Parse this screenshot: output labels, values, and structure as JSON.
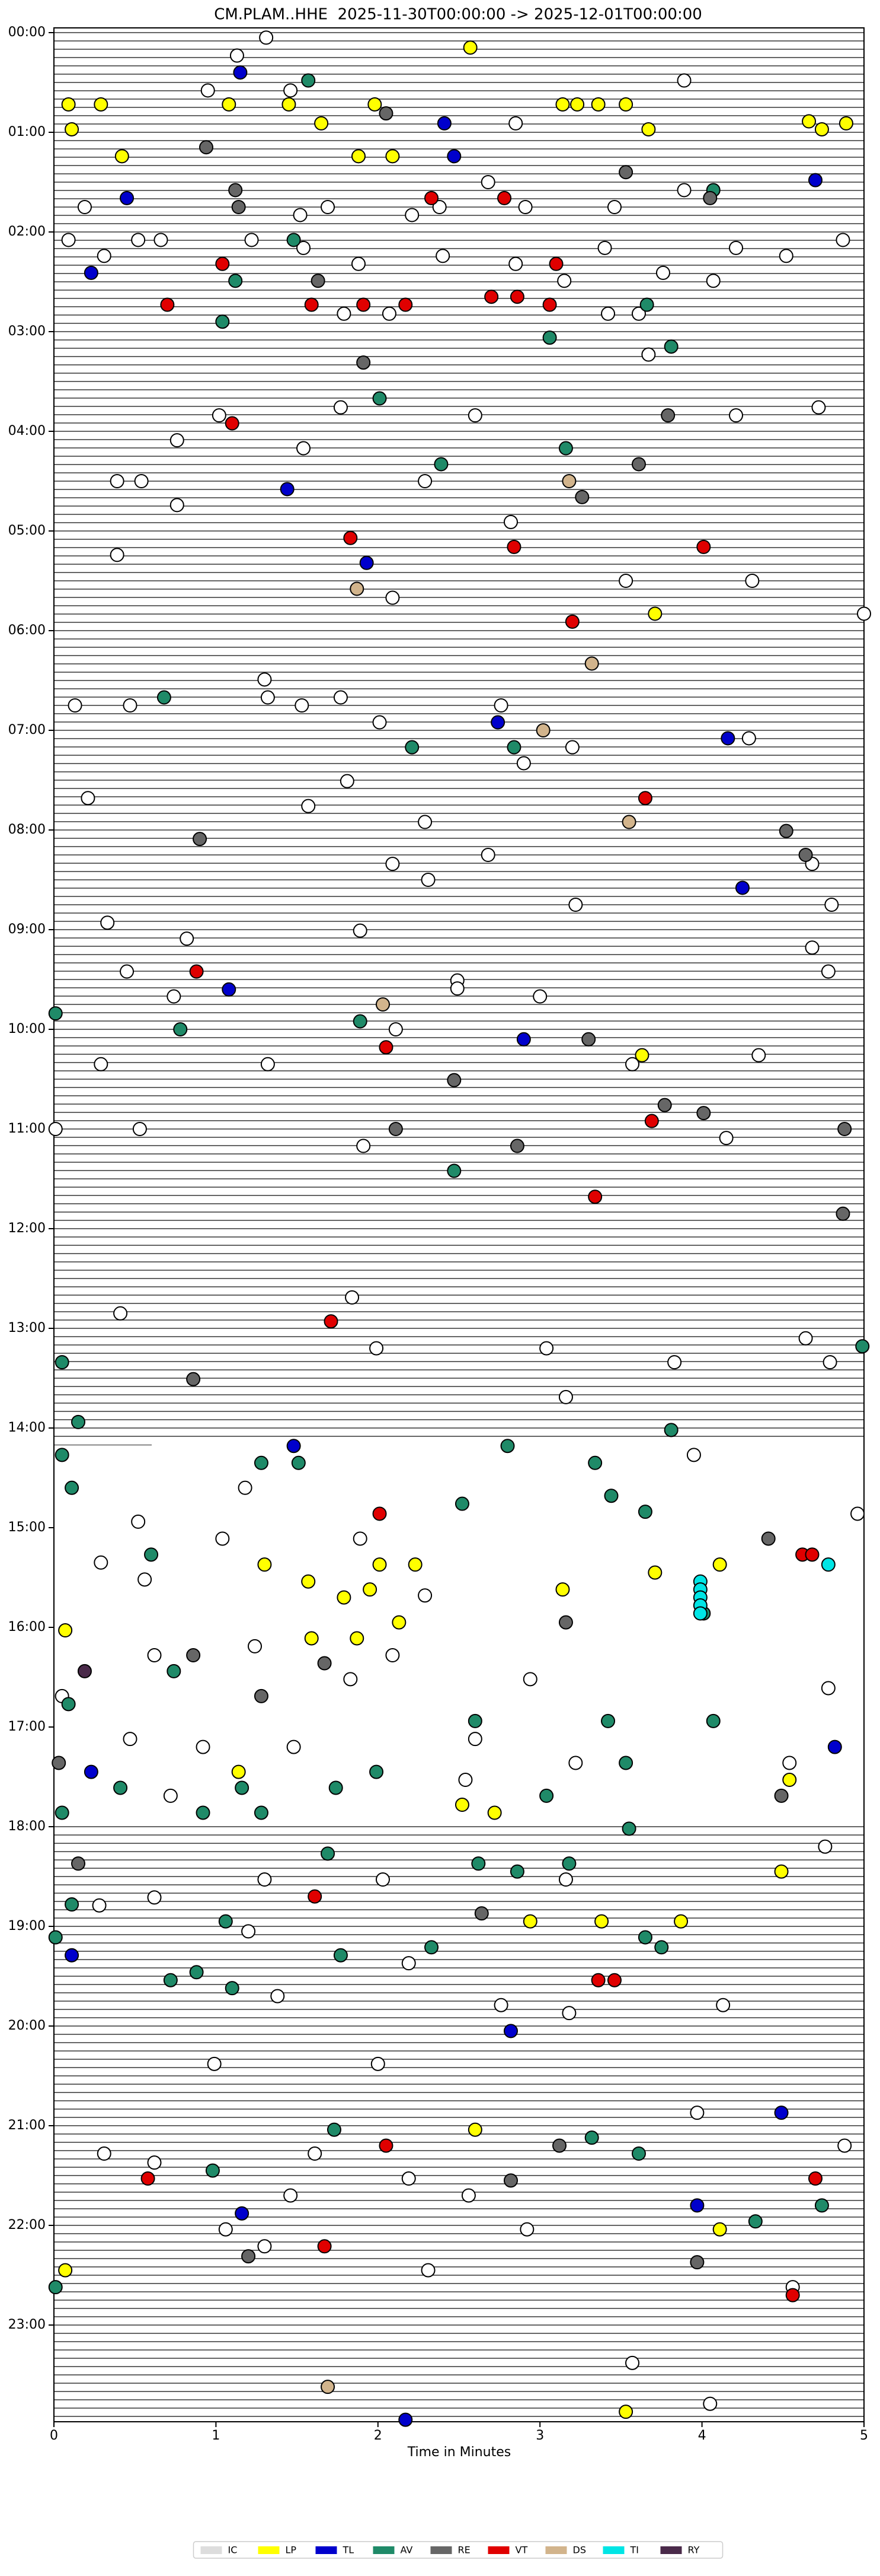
{
  "chart_data": {
    "type": "scatter",
    "title": "CM.PLAM..HHE  2025-11-30T00:00:00 -> 2025-12-01T00:00:00",
    "x_label": "Time in Minutes",
    "xlim": [
      0,
      5
    ],
    "xticks": [
      0,
      1,
      2,
      3,
      4,
      5
    ],
    "ylim": [
      0,
      24
    ],
    "yticks": [
      {
        "value": 0,
        "label": "00:00"
      },
      {
        "value": 1,
        "label": "01:00"
      },
      {
        "value": 2,
        "label": "02:00"
      },
      {
        "value": 3,
        "label": "03:00"
      },
      {
        "value": 4,
        "label": "04:00"
      },
      {
        "value": 5,
        "label": "05:00"
      },
      {
        "value": 6,
        "label": "06:00"
      },
      {
        "value": 7,
        "label": "07:00"
      },
      {
        "value": 8,
        "label": "08:00"
      },
      {
        "value": 9,
        "label": "09:00"
      },
      {
        "value": 10,
        "label": "10:00"
      },
      {
        "value": 11,
        "label": "11:00"
      },
      {
        "value": 12,
        "label": "12:00"
      },
      {
        "value": 13,
        "label": "13:00"
      },
      {
        "value": 14,
        "label": "14:00"
      },
      {
        "value": 15,
        "label": "15:00"
      },
      {
        "value": 16,
        "label": "16:00"
      },
      {
        "value": 17,
        "label": "17:00"
      },
      {
        "value": 18,
        "label": "18:00"
      },
      {
        "value": 19,
        "label": "19:00"
      },
      {
        "value": 20,
        "label": "20:00"
      },
      {
        "value": 21,
        "label": "21:00"
      },
      {
        "value": 22,
        "label": "22:00"
      },
      {
        "value": 23,
        "label": "23:00"
      }
    ],
    "y_inverted": true,
    "legend": "bottom",
    "series": [
      {
        "name": "IC",
        "color": "#ffffff",
        "x": [
          1.31,
          1.13,
          0.95,
          1.46,
          3.89,
          2.85,
          2.68,
          3.89,
          0.19,
          1.69,
          2.38,
          2.91,
          3.46,
          1.52,
          2.21,
          0.09,
          0.52,
          0.66,
          1.22,
          4.87,
          1.54,
          3.4,
          4.21,
          0.31,
          2.4,
          4.52,
          1.88,
          2.85,
          3.76,
          3.15,
          4.07,
          1.79,
          2.07,
          3.42,
          3.61,
          3.67,
          1.02,
          1.77,
          2.6,
          4.21,
          4.72,
          0.76,
          1.54,
          0.39,
          0.54,
          2.29,
          0.76,
          2.82,
          0.39,
          3.53,
          4.31,
          2.09,
          5.0,
          1.3,
          1.32,
          1.53,
          1.77,
          0.13,
          0.47,
          2.76,
          2.01,
          4.29,
          3.2,
          2.9,
          0.21,
          1.57,
          1.81,
          2.29,
          2.68,
          2.09,
          4.68,
          2.31,
          3.22,
          4.8,
          0.33,
          1.89,
          0.82,
          4.68,
          0.45,
          4.78,
          2.49,
          2.49,
          0.74,
          3.0,
          2.11,
          0.29,
          1.32,
          3.57,
          4.35,
          0.01,
          0.53,
          1.91,
          4.15,
          0.41,
          1.84,
          1.99,
          3.04,
          3.83,
          4.64,
          4.79,
          3.16,
          3.95,
          1.18,
          4.96,
          0.52,
          1.04,
          1.89,
          0.29,
          0.56,
          2.29,
          1.24,
          0.62,
          2.09,
          1.83,
          2.94,
          4.78,
          0.05,
          0.47,
          0.92,
          1.48,
          2.6,
          3.22,
          0.72,
          2.54,
          4.54,
          4.76,
          0.28,
          0.62,
          1.3,
          2.03,
          3.16,
          1.2,
          2.19,
          2.76,
          4.13,
          3.18,
          1.38,
          0.99,
          2.0,
          3.97,
          4.88,
          0.31,
          0.62,
          1.61,
          2.19,
          1.46,
          2.56,
          1.06,
          2.92,
          1.3,
          2.31,
          4.56,
          3.57,
          4.05
        ],
        "y": [
          0.05,
          0.23,
          0.58,
          0.58,
          0.48,
          0.91,
          1.5,
          1.58,
          1.75,
          1.75,
          1.75,
          1.75,
          1.75,
          1.83,
          1.83,
          2.08,
          2.08,
          2.08,
          2.08,
          2.08,
          2.16,
          2.16,
          2.16,
          2.24,
          2.24,
          2.24,
          2.32,
          2.32,
          2.41,
          2.49,
          2.49,
          2.82,
          2.82,
          2.82,
          2.82,
          3.23,
          3.84,
          3.76,
          3.84,
          3.84,
          3.76,
          4.09,
          4.17,
          4.5,
          4.5,
          4.5,
          4.74,
          4.91,
          5.24,
          5.5,
          5.5,
          5.67,
          5.83,
          6.49,
          6.67,
          6.75,
          6.67,
          6.75,
          6.75,
          6.75,
          6.92,
          7.08,
          7.17,
          7.33,
          7.68,
          7.76,
          7.51,
          7.92,
          8.25,
          8.34,
          8.34,
          8.5,
          8.75,
          8.75,
          8.93,
          9.01,
          9.09,
          9.18,
          9.42,
          9.42,
          9.51,
          9.59,
          9.67,
          9.67,
          10.0,
          10.35,
          10.35,
          10.35,
          10.26,
          11.0,
          11.0,
          11.17,
          11.09,
          12.85,
          12.69,
          13.2,
          13.2,
          13.34,
          13.1,
          13.34,
          13.69,
          14.27,
          14.6,
          14.86,
          14.94,
          15.11,
          15.11,
          15.35,
          15.52,
          15.68,
          16.19,
          16.28,
          16.28,
          16.52,
          16.52,
          16.61,
          16.69,
          17.12,
          17.2,
          17.2,
          17.12,
          17.36,
          17.69,
          17.53,
          17.36,
          18.2,
          18.79,
          18.71,
          18.53,
          18.53,
          18.53,
          19.05,
          19.37,
          19.79,
          19.79,
          19.87,
          19.7,
          20.38,
          20.38,
          20.87,
          21.2,
          21.28,
          21.37,
          21.28,
          21.53,
          21.7,
          21.7,
          22.04,
          22.04,
          22.21,
          22.45,
          22.62,
          23.38,
          23.79
        ]
      },
      {
        "name": "LP",
        "color": "#ffff00",
        "x": [
          2.57,
          0.09,
          0.29,
          1.08,
          1.45,
          1.98,
          3.14,
          3.23,
          3.36,
          3.53,
          1.65,
          0.11,
          3.67,
          4.66,
          4.74,
          4.89,
          0.42,
          1.88,
          2.09,
          3.71,
          3.63,
          1.3,
          1.57,
          1.79,
          2.01,
          2.23,
          1.95,
          3.14,
          3.71,
          4.11,
          0.07,
          1.59,
          1.87,
          2.13,
          1.14,
          4.54,
          2.52,
          2.72,
          2.94,
          3.38,
          3.87,
          4.49,
          2.6,
          4.11,
          0.07,
          3.53
        ],
        "y": [
          0.15,
          0.72,
          0.72,
          0.72,
          0.72,
          0.72,
          0.72,
          0.72,
          0.72,
          0.72,
          0.91,
          0.97,
          0.97,
          0.89,
          0.97,
          0.91,
          1.24,
          1.24,
          1.24,
          5.83,
          10.26,
          15.37,
          15.54,
          15.7,
          15.37,
          15.37,
          15.62,
          15.62,
          15.45,
          15.37,
          16.03,
          16.11,
          16.11,
          15.95,
          17.45,
          17.53,
          17.78,
          17.86,
          18.95,
          18.95,
          18.95,
          18.45,
          21.04,
          22.04,
          22.45,
          23.87
        ]
      },
      {
        "name": "TL",
        "color": "#0000cc",
        "x": [
          1.15,
          2.41,
          2.47,
          0.45,
          4.7,
          0.23,
          1.93,
          1.44,
          2.74,
          4.16,
          1.08,
          2.9,
          4.25,
          1.48,
          0.23,
          4.82,
          0.11,
          2.82,
          1.16,
          4.49,
          3.97,
          2.17
        ],
        "y": [
          0.4,
          0.91,
          1.24,
          1.66,
          1.48,
          2.41,
          5.32,
          4.58,
          6.92,
          7.08,
          9.6,
          10.1,
          8.58,
          14.18,
          17.45,
          17.2,
          19.29,
          20.05,
          21.88,
          20.87,
          21.8,
          23.95
        ]
      },
      {
        "name": "AV",
        "color": "#1f8a68",
        "x": [
          1.57,
          4.07,
          1.48,
          1.12,
          1.04,
          3.66,
          3.06,
          3.81,
          2.01,
          3.16,
          2.39,
          0.68,
          2.21,
          2.84,
          0.01,
          0.78,
          1.89,
          2.47,
          0.05,
          4.99,
          0.15,
          3.81,
          0.05,
          0.11,
          1.28,
          1.51,
          2.8,
          3.34,
          2.52,
          3.44,
          3.65,
          0.6,
          4.01,
          0.09,
          2.6,
          3.42,
          4.07,
          0.74,
          0.41,
          1.16,
          1.99,
          3.04,
          1.74,
          3.53,
          0.05,
          0.92,
          1.28,
          3.55,
          1.69,
          2.62,
          2.86,
          3.18,
          0.11,
          0.01,
          1.06,
          1.77,
          2.33,
          0.72,
          0.88,
          1.1,
          3.65,
          3.75,
          1.73,
          3.32,
          0.98,
          3.61,
          4.74,
          4.33,
          0.01
        ],
        "y": [
          0.48,
          1.58,
          2.08,
          2.49,
          2.9,
          2.73,
          3.06,
          3.15,
          3.67,
          4.17,
          4.33,
          6.67,
          7.17,
          7.17,
          9.84,
          10.0,
          9.92,
          11.42,
          13.34,
          13.18,
          13.94,
          14.02,
          14.27,
          14.6,
          14.35,
          14.35,
          14.18,
          14.35,
          14.76,
          14.68,
          14.84,
          15.27,
          15.86,
          16.77,
          16.94,
          16.94,
          16.94,
          16.44,
          17.61,
          17.61,
          17.45,
          17.69,
          17.61,
          17.36,
          17.86,
          17.86,
          17.86,
          18.02,
          18.27,
          18.37,
          18.45,
          18.37,
          18.78,
          19.11,
          18.95,
          19.29,
          19.21,
          19.54,
          19.46,
          19.62,
          19.11,
          19.21,
          21.04,
          21.12,
          21.45,
          21.28,
          21.8,
          21.96,
          22.62
        ]
      },
      {
        "name": "RE",
        "color": "#666666",
        "x": [
          2.05,
          0.94,
          3.53,
          1.12,
          1.14,
          4.05,
          1.63,
          1.91,
          3.79,
          3.61,
          3.26,
          0.9,
          4.52,
          4.64,
          3.3,
          2.47,
          3.77,
          4.01,
          2.11,
          2.86,
          4.88,
          4.87,
          0.86,
          4.41,
          3.16,
          0.86,
          1.67,
          1.28,
          4.49,
          0.15,
          2.64,
          2.82,
          3.12,
          1.2,
          3.97,
          0.03
        ],
        "y": [
          0.81,
          1.15,
          1.4,
          1.58,
          1.75,
          1.66,
          2.49,
          3.31,
          3.84,
          4.33,
          4.66,
          8.09,
          8.01,
          8.25,
          10.1,
          10.51,
          10.76,
          10.84,
          11.0,
          11.17,
          11.0,
          11.85,
          13.51,
          15.11,
          15.95,
          16.28,
          16.36,
          16.69,
          17.69,
          18.37,
          18.87,
          21.55,
          21.2,
          22.31,
          22.37,
          17.36
        ]
      },
      {
        "name": "VT",
        "color": "#e00000",
        "x": [
          2.33,
          2.78,
          1.04,
          0.7,
          1.59,
          1.91,
          2.17,
          2.7,
          2.86,
          3.06,
          3.1,
          1.1,
          1.83,
          2.84,
          4.01,
          3.2,
          3.65,
          0.88,
          2.05,
          3.69,
          3.34,
          1.71,
          2.01,
          4.62,
          4.68,
          1.61,
          3.36,
          3.46,
          2.05,
          0.58,
          4.7,
          1.67,
          4.56
        ],
        "y": [
          1.66,
          1.66,
          2.32,
          2.73,
          2.73,
          2.73,
          2.73,
          2.65,
          2.65,
          2.73,
          2.32,
          3.92,
          5.07,
          5.16,
          5.16,
          5.91,
          7.68,
          9.42,
          10.18,
          10.92,
          11.68,
          12.93,
          14.86,
          15.27,
          15.27,
          18.7,
          19.54,
          19.54,
          21.2,
          21.53,
          21.53,
          22.21,
          22.7
        ]
      },
      {
        "name": "DS",
        "color": "#d2b48c",
        "x": [
          1.87,
          3.32,
          3.02,
          3.55,
          2.03,
          3.18,
          1.69
        ],
        "y": [
          5.58,
          6.33,
          7.0,
          7.92,
          9.75,
          4.5,
          23.62
        ]
      },
      {
        "name": "TI",
        "color": "#00e5e5",
        "x": [
          3.99,
          3.99,
          3.99,
          3.99,
          3.99,
          4.78
        ],
        "y": [
          15.54,
          15.62,
          15.7,
          15.78,
          15.86,
          15.37
        ]
      },
      {
        "name": "RY",
        "color": "#4a2a4a",
        "x": [
          0.19
        ],
        "y": [
          16.44
        ]
      }
    ]
  }
}
